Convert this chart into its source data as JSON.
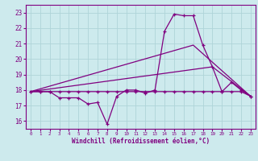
{
  "bg_color": "#cdeaed",
  "line_color": "#800080",
  "grid_color": "#afd4d8",
  "xlabel": "Windchill (Refroidissement éolien,°C)",
  "xlim": [
    -0.5,
    23.5
  ],
  "ylim": [
    15.5,
    23.5
  ],
  "yticks": [
    16,
    17,
    18,
    19,
    20,
    21,
    22,
    23
  ],
  "xticks": [
    0,
    1,
    2,
    3,
    4,
    5,
    6,
    7,
    8,
    9,
    10,
    11,
    12,
    13,
    14,
    15,
    16,
    17,
    18,
    19,
    20,
    21,
    22,
    23
  ],
  "series1_x": [
    0,
    1,
    2,
    3,
    4,
    5,
    6,
    7,
    8,
    9,
    10,
    11,
    12,
    13,
    14,
    15,
    16,
    17,
    18,
    19,
    20,
    21,
    22,
    23
  ],
  "series1_y": [
    17.9,
    17.9,
    17.9,
    17.5,
    17.5,
    17.5,
    17.1,
    17.2,
    15.8,
    17.6,
    18.0,
    18.0,
    17.8,
    18.0,
    21.8,
    22.9,
    22.8,
    22.8,
    20.9,
    19.5,
    17.9,
    18.5,
    18.0,
    17.6
  ],
  "series2_x": [
    0,
    1,
    2,
    3,
    4,
    5,
    6,
    7,
    8,
    9,
    10,
    11,
    12,
    13,
    14,
    15,
    16,
    17,
    18,
    19,
    20,
    21,
    22,
    23
  ],
  "series2_y": [
    17.9,
    17.9,
    17.9,
    17.9,
    17.9,
    17.9,
    17.9,
    17.9,
    17.9,
    17.9,
    17.9,
    17.9,
    17.9,
    17.9,
    17.9,
    17.9,
    17.9,
    17.9,
    17.9,
    17.9,
    17.9,
    17.9,
    17.9,
    17.6
  ],
  "series3_x": [
    0,
    17,
    23
  ],
  "series3_y": [
    17.9,
    20.9,
    17.6
  ],
  "series4_x": [
    0,
    19,
    23
  ],
  "series4_y": [
    17.9,
    19.5,
    17.6
  ]
}
